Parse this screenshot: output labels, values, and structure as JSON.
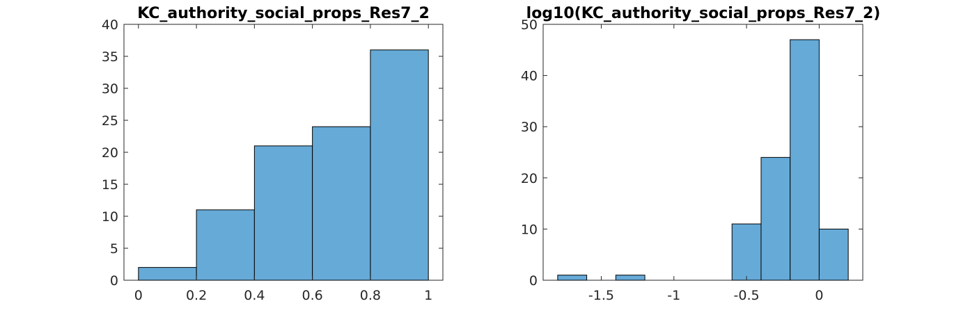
{
  "chart_data": [
    {
      "type": "bar",
      "title": "KC_authority_social_props_Res7_2",
      "xlabel": "",
      "ylabel": "",
      "bin_edges": [
        0,
        0.2,
        0.4,
        0.6,
        0.8,
        1.0
      ],
      "values": [
        2,
        11,
        21,
        24,
        36
      ],
      "xlim": [
        -0.05,
        1.05
      ],
      "ylim": [
        0,
        40
      ],
      "xticks": [
        0,
        0.2,
        0.4,
        0.6,
        0.8,
        1
      ],
      "xtick_labels": [
        "0",
        "0.2",
        "0.4",
        "0.6",
        "0.8",
        "1"
      ],
      "yticks": [
        0,
        5,
        10,
        15,
        20,
        25,
        30,
        35,
        40
      ],
      "ytick_labels": [
        "0",
        "5",
        "10",
        "15",
        "20",
        "25",
        "30",
        "35",
        "40"
      ],
      "bar_color": "#66aad7",
      "edge_color": "#000000"
    },
    {
      "type": "bar",
      "title": "log10(KC_authority_social_props_Res7_2)",
      "xlabel": "",
      "ylabel": "",
      "bin_edges": [
        -1.8,
        -1.6,
        -1.4,
        -1.2,
        -1.0,
        -0.8,
        -0.6,
        -0.4,
        -0.2,
        0.0,
        0.2
      ],
      "values": [
        1,
        0,
        1,
        0,
        0,
        0,
        11,
        24,
        47,
        10
      ],
      "xlim": [
        -1.9,
        0.3
      ],
      "ylim": [
        0,
        50
      ],
      "xticks": [
        -1.5,
        -1,
        -0.5,
        0
      ],
      "xtick_labels": [
        "-1.5",
        "-1",
        "-0.5",
        "0"
      ],
      "yticks": [
        0,
        10,
        20,
        30,
        40,
        50
      ],
      "ytick_labels": [
        "0",
        "10",
        "20",
        "30",
        "40",
        "50"
      ],
      "bar_color": "#66aad7",
      "edge_color": "#000000"
    }
  ]
}
